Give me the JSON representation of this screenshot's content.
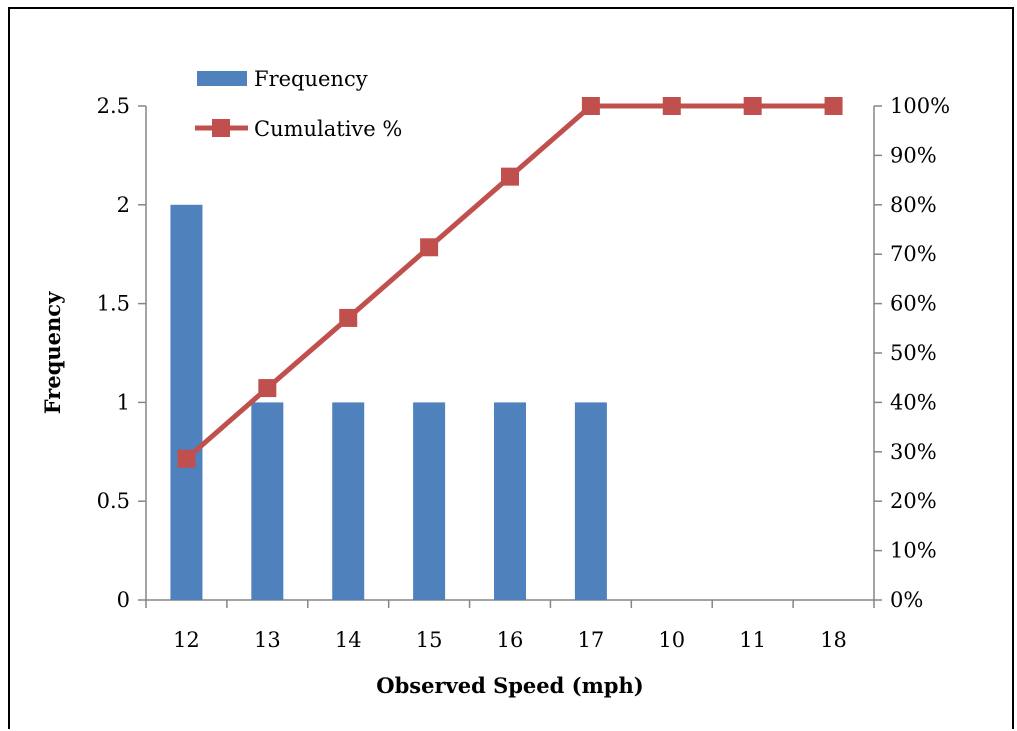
{
  "chart_data": {
    "type": "bar",
    "categories": [
      "12",
      "13",
      "14",
      "15",
      "16",
      "17",
      "10",
      "11",
      "18"
    ],
    "series": [
      {
        "name": "Frequency",
        "type": "bar",
        "axis": "left",
        "color": "#4f81bd",
        "values": [
          2,
          1,
          1,
          1,
          1,
          1,
          0,
          0,
          0
        ]
      },
      {
        "name": "Cumulative %",
        "type": "line",
        "axis": "right",
        "color": "#c0504d",
        "marker": "square",
        "values": [
          28.6,
          42.9,
          57.1,
          71.4,
          85.7,
          100,
          100,
          100,
          100
        ]
      }
    ],
    "xlabel": "Observed Speed (mph)",
    "ylabel": "Frequency",
    "ylim": [
      0,
      2.5
    ],
    "y_ticks": [
      "0",
      "0.5",
      "1",
      "1.5",
      "2",
      "2.5"
    ],
    "y2lim": [
      0,
      100
    ],
    "y2_ticks": [
      "0%",
      "10%",
      "20%",
      "30%",
      "40%",
      "50%",
      "60%",
      "70%",
      "80%",
      "90%",
      "100%"
    ],
    "grid": false,
    "legend_position": "top-left"
  }
}
